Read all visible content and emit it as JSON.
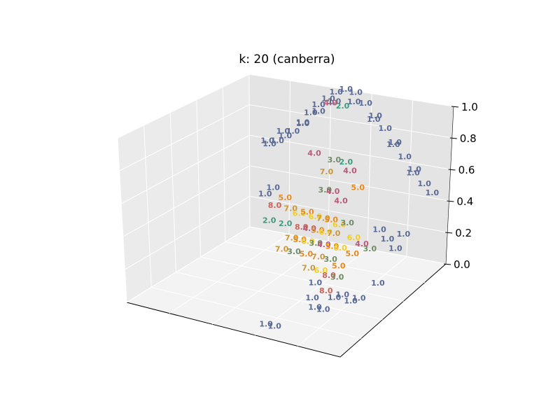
{
  "chart_data": {
    "type": "scatter3d",
    "title": "k: 20 (canberra)",
    "xlabel": "",
    "ylabel": "",
    "zlabel": "",
    "zlim": [
      0.0,
      1.0
    ],
    "z_ticks": [
      "0.0",
      "0.2",
      "0.4",
      "0.6",
      "0.8",
      "1.0"
    ],
    "grid": true,
    "label_colors": {
      "1.0": "#5a6a96",
      "2.0": "#3d9b80",
      "3.0": "#6f8c64",
      "4.0": "#b85a78",
      "5.0": "#e8891c",
      "6.0": "#f2cf1f",
      "7.0": "#c8983a",
      "8.0": "#c9645a"
    },
    "points": [
      {
        "x": 0.1,
        "y": 0.0,
        "z": 0.55,
        "label": "1.0"
      },
      {
        "x": 0.14,
        "y": 0.0,
        "z": 0.58,
        "label": "1.0"
      },
      {
        "x": 0.18,
        "y": 0.0,
        "z": 0.62,
        "label": "1.0"
      },
      {
        "x": 0.22,
        "y": 0.0,
        "z": 0.66,
        "label": "1.0"
      },
      {
        "x": 0.27,
        "y": 0.0,
        "z": 0.72,
        "label": "1.0"
      },
      {
        "x": 0.31,
        "y": 0.0,
        "z": 0.8,
        "label": "1.0"
      },
      {
        "x": 0.35,
        "y": 0.0,
        "z": 0.86,
        "label": "1.0"
      },
      {
        "x": 0.4,
        "y": 0.0,
        "z": 0.91,
        "label": "1.0"
      },
      {
        "x": 0.44,
        "y": 0.0,
        "z": 0.96,
        "label": "1.0"
      },
      {
        "x": 0.49,
        "y": 0.0,
        "z": 0.99,
        "label": "1.0"
      },
      {
        "x": 0.54,
        "y": 0.0,
        "z": 0.98,
        "label": "1.0"
      },
      {
        "x": 0.59,
        "y": 0.0,
        "z": 0.92,
        "label": "1.0"
      },
      {
        "x": 0.64,
        "y": 0.0,
        "z": 0.85,
        "label": "1.0"
      },
      {
        "x": 0.69,
        "y": 0.0,
        "z": 0.78,
        "label": "1.0"
      },
      {
        "x": 0.74,
        "y": 0.0,
        "z": 0.7,
        "label": "1.0"
      },
      {
        "x": 0.79,
        "y": 0.0,
        "z": 0.62,
        "label": "1.0"
      },
      {
        "x": 0.84,
        "y": 0.0,
        "z": 0.55,
        "label": "1.0"
      },
      {
        "x": 0.89,
        "y": 0.0,
        "z": 0.47,
        "label": "1.0"
      },
      {
        "x": 0.93,
        "y": 0.0,
        "z": 0.42,
        "label": "1.0"
      },
      {
        "x": 0.12,
        "y": 0.05,
        "z": 0.6,
        "label": "1.0"
      },
      {
        "x": 0.2,
        "y": 0.05,
        "z": 0.68,
        "label": "1.0"
      },
      {
        "x": 0.3,
        "y": 0.05,
        "z": 0.76,
        "label": "1.0"
      },
      {
        "x": 0.38,
        "y": 0.05,
        "z": 0.85,
        "label": "1.0"
      },
      {
        "x": 0.46,
        "y": 0.05,
        "z": 0.93,
        "label": "1.0"
      },
      {
        "x": 0.56,
        "y": 0.05,
        "z": 0.95,
        "label": "1.0"
      },
      {
        "x": 0.66,
        "y": 0.05,
        "z": 0.86,
        "label": "1.0"
      },
      {
        "x": 0.76,
        "y": 0.05,
        "z": 0.72,
        "label": "1.0"
      },
      {
        "x": 0.86,
        "y": 0.05,
        "z": 0.56,
        "label": "1.0"
      },
      {
        "x": 0.52,
        "y": 0.08,
        "z": 0.93,
        "label": "2.0"
      },
      {
        "x": 0.47,
        "y": 0.1,
        "z": 0.95,
        "label": "4.0"
      },
      {
        "x": 0.4,
        "y": 0.12,
        "z": 0.62,
        "label": "4.0"
      },
      {
        "x": 0.58,
        "y": 0.12,
        "z": 0.55,
        "label": "4.0"
      },
      {
        "x": 0.5,
        "y": 0.12,
        "z": 0.6,
        "label": "3.0"
      },
      {
        "x": 0.56,
        "y": 0.12,
        "z": 0.6,
        "label": "2.0"
      },
      {
        "x": 0.62,
        "y": 0.12,
        "z": 0.45,
        "label": "5.0"
      },
      {
        "x": 0.45,
        "y": 0.1,
        "z": 0.5,
        "label": "7.0"
      },
      {
        "x": 0.3,
        "y": 0.2,
        "z": 0.35,
        "label": "5.0"
      },
      {
        "x": 0.26,
        "y": 0.22,
        "z": 0.3,
        "label": "8.0"
      },
      {
        "x": 0.34,
        "y": 0.22,
        "z": 0.3,
        "label": "7.0"
      },
      {
        "x": 0.28,
        "y": 0.3,
        "z": 0.25,
        "label": "2.0"
      },
      {
        "x": 0.36,
        "y": 0.3,
        "z": 0.25,
        "label": "2.0"
      },
      {
        "x": 0.4,
        "y": 0.25,
        "z": 0.3,
        "label": "6.0"
      },
      {
        "x": 0.44,
        "y": 0.25,
        "z": 0.32,
        "label": "5.0"
      },
      {
        "x": 0.48,
        "y": 0.25,
        "z": 0.3,
        "label": "6.0"
      },
      {
        "x": 0.52,
        "y": 0.25,
        "z": 0.3,
        "label": "7.0"
      },
      {
        "x": 0.56,
        "y": 0.25,
        "z": 0.3,
        "label": "5.0"
      },
      {
        "x": 0.6,
        "y": 0.25,
        "z": 0.28,
        "label": "6.0"
      },
      {
        "x": 0.64,
        "y": 0.25,
        "z": 0.3,
        "label": "3.0"
      },
      {
        "x": 0.44,
        "y": 0.3,
        "z": 0.25,
        "label": "8.0"
      },
      {
        "x": 0.48,
        "y": 0.3,
        "z": 0.25,
        "label": "4.0"
      },
      {
        "x": 0.52,
        "y": 0.3,
        "z": 0.25,
        "label": "5.0"
      },
      {
        "x": 0.56,
        "y": 0.3,
        "z": 0.25,
        "label": "6.0"
      },
      {
        "x": 0.6,
        "y": 0.3,
        "z": 0.25,
        "label": "7.0"
      },
      {
        "x": 0.42,
        "y": 0.35,
        "z": 0.2,
        "label": "7.0"
      },
      {
        "x": 0.46,
        "y": 0.35,
        "z": 0.2,
        "label": "5.0"
      },
      {
        "x": 0.5,
        "y": 0.35,
        "z": 0.2,
        "label": "6.0"
      },
      {
        "x": 0.54,
        "y": 0.35,
        "z": 0.2,
        "label": "3.0"
      },
      {
        "x": 0.58,
        "y": 0.35,
        "z": 0.2,
        "label": "4.0"
      },
      {
        "x": 0.62,
        "y": 0.35,
        "z": 0.2,
        "label": "5.0"
      },
      {
        "x": 0.66,
        "y": 0.35,
        "z": 0.2,
        "label": "6.0"
      },
      {
        "x": 0.7,
        "y": 0.3,
        "z": 0.25,
        "label": "6.0"
      },
      {
        "x": 0.74,
        "y": 0.3,
        "z": 0.22,
        "label": "4.0"
      },
      {
        "x": 0.78,
        "y": 0.3,
        "z": 0.2,
        "label": "3.0"
      },
      {
        "x": 0.72,
        "y": 0.35,
        "z": 0.18,
        "label": "5.0"
      },
      {
        "x": 0.4,
        "y": 0.4,
        "z": 0.15,
        "label": "7.0"
      },
      {
        "x": 0.46,
        "y": 0.4,
        "z": 0.15,
        "label": "3.0"
      },
      {
        "x": 0.52,
        "y": 0.4,
        "z": 0.15,
        "label": "5.0"
      },
      {
        "x": 0.58,
        "y": 0.4,
        "z": 0.15,
        "label": "7.0"
      },
      {
        "x": 0.64,
        "y": 0.4,
        "z": 0.15,
        "label": "3.0"
      },
      {
        "x": 0.68,
        "y": 0.4,
        "z": 0.12,
        "label": "5.0"
      },
      {
        "x": 0.56,
        "y": 0.45,
        "z": 0.1,
        "label": "7.0"
      },
      {
        "x": 0.62,
        "y": 0.45,
        "z": 0.1,
        "label": "6.0"
      },
      {
        "x": 0.66,
        "y": 0.45,
        "z": 0.08,
        "label": "8.0"
      },
      {
        "x": 0.7,
        "y": 0.45,
        "z": 0.08,
        "label": "3.0"
      },
      {
        "x": 0.8,
        "y": 0.25,
        "z": 0.3,
        "label": "1.0"
      },
      {
        "x": 0.84,
        "y": 0.25,
        "z": 0.25,
        "label": "1.0"
      },
      {
        "x": 0.88,
        "y": 0.25,
        "z": 0.2,
        "label": "1.0"
      },
      {
        "x": 0.92,
        "y": 0.25,
        "z": 0.3,
        "label": "1.0"
      },
      {
        "x": 0.62,
        "y": 0.5,
        "z": 0.05,
        "label": "1.0"
      },
      {
        "x": 0.7,
        "y": 0.55,
        "z": 0.05,
        "label": "8.0"
      },
      {
        "x": 0.74,
        "y": 0.55,
        "z": 0.02,
        "label": "1.0"
      },
      {
        "x": 0.78,
        "y": 0.55,
        "z": 0.05,
        "label": "1.0"
      },
      {
        "x": 0.82,
        "y": 0.55,
        "z": 0.02,
        "label": "1.0"
      },
      {
        "x": 0.86,
        "y": 0.55,
        "z": 0.05,
        "label": "1.0"
      },
      {
        "x": 0.66,
        "y": 0.6,
        "z": 0.02,
        "label": "1.0"
      },
      {
        "x": 0.7,
        "y": 0.65,
        "z": 0.0,
        "label": "1.0"
      },
      {
        "x": 0.74,
        "y": 0.65,
        "z": 0.0,
        "label": "1.0"
      },
      {
        "x": 0.6,
        "y": 0.9,
        "z": 0.0,
        "label": "1.0"
      },
      {
        "x": 0.64,
        "y": 0.9,
        "z": 0.0,
        "label": "1.0"
      },
      {
        "x": 0.9,
        "y": 0.45,
        "z": 0.1,
        "label": "1.0"
      },
      {
        "x": 0.2,
        "y": 0.2,
        "z": 0.35,
        "label": "1.0"
      },
      {
        "x": 0.24,
        "y": 0.2,
        "z": 0.4,
        "label": "1.0"
      },
      {
        "x": 0.5,
        "y": 0.2,
        "z": 0.45,
        "label": "3.0"
      },
      {
        "x": 0.54,
        "y": 0.2,
        "z": 0.45,
        "label": "4.0"
      },
      {
        "x": 0.58,
        "y": 0.2,
        "z": 0.4,
        "label": "4.0"
      }
    ]
  }
}
